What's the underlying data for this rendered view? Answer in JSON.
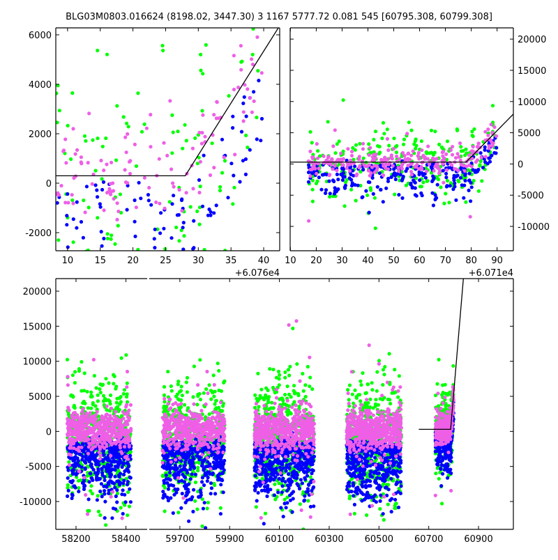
{
  "chart_data": {
    "type": "scatter",
    "title": "BLG03M0803.016624 (8198.02, 3447.30)   3 1167 5777.72 0.081 545 [60795.308, 60799.308]",
    "colors": {
      "green": "#00ff00",
      "blue": "#0000ff",
      "magenta": "#ee5fe6",
      "model": "#000000"
    },
    "model": {
      "type": "piecewise-linear",
      "break_x": 60788,
      "baseline": 300,
      "slope_per_day": 420,
      "start_x": 60660
    },
    "panels": [
      {
        "id": "top-left",
        "xlim": [
          60768.2,
          60802.45
        ],
        "x_offset": 60760,
        "offset_label": "+6.076e4",
        "ylim": [
          -2732,
          6282
        ],
        "xticks": [
          10,
          15,
          20,
          25,
          30,
          35,
          40
        ],
        "yticks": [
          -2000,
          0,
          2000,
          4000,
          6000
        ],
        "ytick_side": "left"
      },
      {
        "id": "top-right",
        "xlim": [
          60719.9,
          60806.3
        ],
        "x_offset": 60710,
        "offset_label": "+6.071e4",
        "ylim": [
          -13900,
          21800
        ],
        "xticks": [
          10,
          20,
          30,
          40,
          50,
          60,
          70,
          80,
          90
        ],
        "yticks": [
          -10000,
          -5000,
          0,
          5000,
          10000,
          15000,
          20000
        ],
        "ytick_side": "right"
      },
      {
        "id": "bottom",
        "broken_x": [
          [
            58119,
            58485
          ],
          [
            59577,
            61040
          ]
        ],
        "ylim": [
          -13970,
          21790
        ],
        "xticks": [
          58200,
          58400,
          59700,
          59900,
          60100,
          60300,
          60500,
          60700,
          60900
        ],
        "yticks": [
          -10000,
          -5000,
          0,
          5000,
          10000,
          15000,
          20000
        ],
        "ytick_side": "left"
      }
    ],
    "seasons": [
      {
        "x": [
          58165,
          58420
        ],
        "n": 450
      },
      {
        "x": [
          59630,
          59880
        ],
        "n": 450
      },
      {
        "x": [
          60000,
          60240
        ],
        "n": 550
      },
      {
        "x": [
          60370,
          60590
        ],
        "n": 500
      },
      {
        "x": [
          60727,
          60800
        ],
        "n": 260,
        "follows_model": true
      }
    ],
    "series": [
      {
        "name": "green",
        "mean": -1200,
        "sd": 4200
      },
      {
        "name": "blue",
        "mean": -3800,
        "sd": 3000
      },
      {
        "name": "magenta",
        "mean": 200,
        "sd": 1500
      }
    ]
  }
}
